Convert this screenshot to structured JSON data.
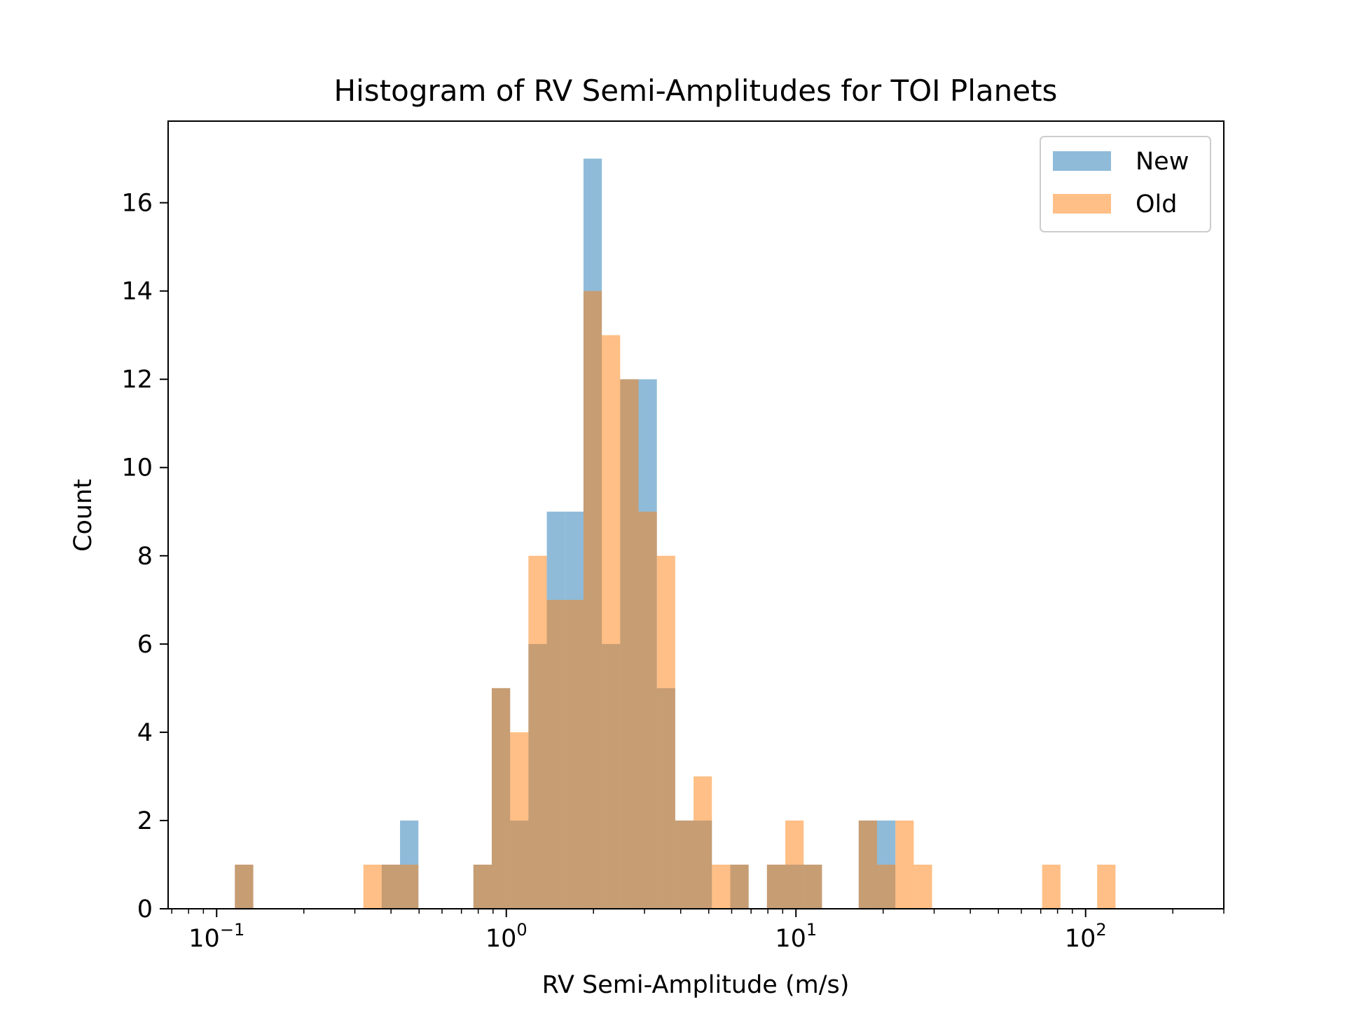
{
  "chart_data": {
    "type": "bar",
    "title": "Histogram of RV Semi-Amplitudes for TOI Planets",
    "xlabel": "RV Semi-Amplitude (m/s)",
    "ylabel": "Count",
    "x_scale": "log",
    "xlim": [
      0.068,
      300
    ],
    "ylim": [
      0,
      17.85
    ],
    "grid": false,
    "legend_position": "top-right",
    "y_ticks": [
      0,
      2,
      4,
      6,
      8,
      10,
      12,
      14,
      16
    ],
    "x_ticks": [
      {
        "base": "10",
        "exp": "−1",
        "value": 0.1
      },
      {
        "base": "10",
        "exp": "0",
        "value": 1
      },
      {
        "base": "10",
        "exp": "1",
        "value": 10
      },
      {
        "base": "10",
        "exp": "2",
        "value": 100
      }
    ],
    "bin_edges": [
      0.1156,
      0.1338,
      0.1548,
      0.1791,
      0.2072,
      0.2398,
      0.2774,
      0.321,
      0.3714,
      0.4297,
      0.4972,
      0.5752,
      0.6655,
      0.77,
      0.8909,
      1.0308,
      1.1926,
      1.3799,
      1.5965,
      1.8472,
      2.1372,
      2.4728,
      2.8611,
      3.3103,
      3.8301,
      4.4315,
      5.1273,
      5.9323,
      6.8637,
      7.9414,
      9.1883,
      10.631,
      12.3,
      14.231,
      16.466,
      19.051,
      22.042,
      25.503,
      29.507,
      34.14,
      39.5,
      45.702,
      52.878,
      61.181,
      70.787,
      81.901,
      94.76,
      109.64,
      126.85,
      146.77
    ],
    "series": [
      {
        "name": "New",
        "color": "#1f77b4",
        "values": [
          1,
          0,
          0,
          0,
          0,
          0,
          0,
          0,
          1,
          2,
          0,
          0,
          0,
          1,
          5,
          2,
          6,
          9,
          9,
          17,
          6,
          12,
          12,
          5,
          2,
          2,
          0,
          1,
          0,
          1,
          1,
          1,
          0,
          0,
          2,
          2,
          0,
          0,
          0,
          0,
          0,
          0,
          0,
          0,
          0,
          0,
          0,
          0,
          0
        ]
      },
      {
        "name": "Old",
        "color": "#ff7f0e",
        "values": [
          1,
          0,
          0,
          0,
          0,
          0,
          0,
          1,
          1,
          1,
          0,
          0,
          0,
          1,
          5,
          4,
          8,
          7,
          7,
          14,
          13,
          12,
          9,
          8,
          2,
          3,
          1,
          1,
          0,
          1,
          2,
          1,
          0,
          0,
          2,
          1,
          2,
          1,
          0,
          0,
          0,
          0,
          0,
          0,
          1,
          0,
          0,
          1,
          0
        ]
      }
    ]
  }
}
